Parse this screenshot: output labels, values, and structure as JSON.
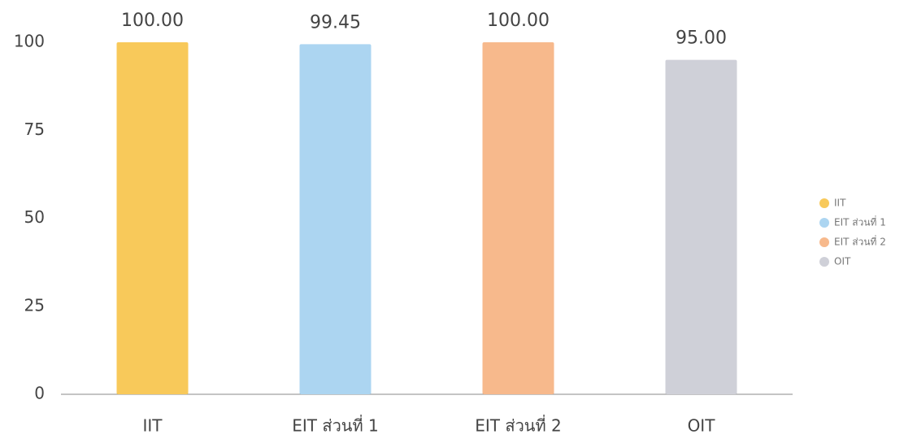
{
  "chart_data": {
    "type": "bar",
    "categories": [
      "IIT",
      "EIT ส่วนที่ 1",
      "EIT ส่วนที่ 2",
      "OIT"
    ],
    "values": [
      100,
      99.45,
      100,
      95
    ],
    "value_labels": [
      "100.00",
      "99.45",
      "100.00",
      "95.00"
    ],
    "colors": [
      "#f8c95a",
      "#acd5f1",
      "#f7b98c",
      "#cfd0d8"
    ],
    "ylim": [
      0,
      100
    ],
    "yticks": [
      0,
      25,
      50,
      75,
      100
    ],
    "grid": false,
    "legend": "right"
  }
}
